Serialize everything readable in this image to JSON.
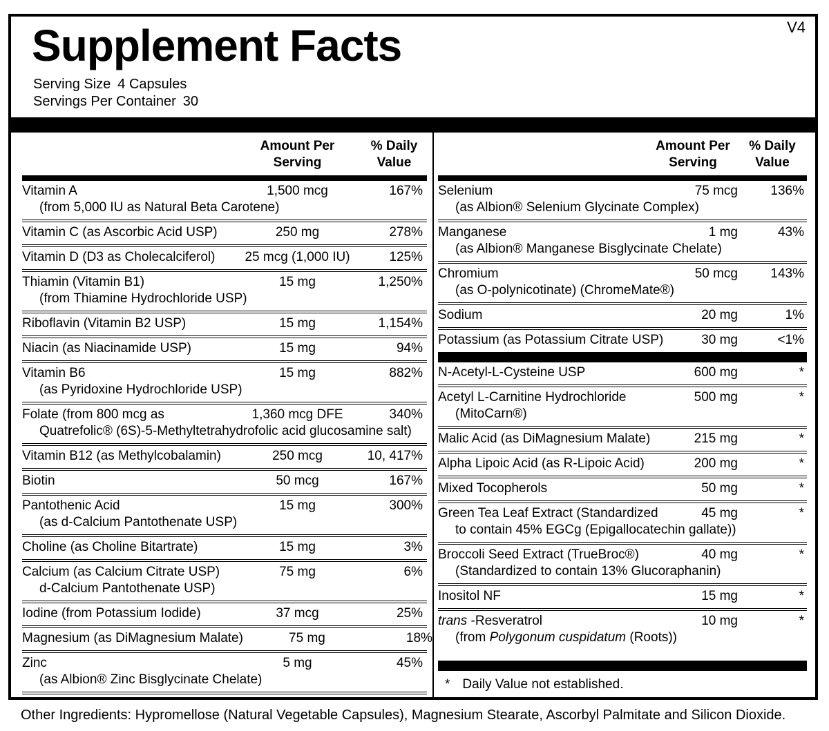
{
  "version_tag": "V4",
  "title": "Supplement Facts",
  "serving": {
    "size_label": "Serving Size",
    "size_value": "4 Capsules",
    "container_label": "Servings Per Container",
    "container_value": "30"
  },
  "column_header": {
    "amount_line1": "Amount Per",
    "amount_line2": "Serving",
    "dv_line1": "% Daily",
    "dv_line2": "Value"
  },
  "left_column": {
    "rows": [
      {
        "name": "Vitamin A",
        "amount": "1,500 mcg",
        "dv": "167%",
        "sub": "(from 5,000 IU as Natural Beta Carotene)"
      },
      {
        "name": "Vitamin C (as Ascorbic Acid USP)",
        "amount": "250 mg",
        "dv": "278%"
      },
      {
        "name": "Vitamin D (D3 as Cholecalciferol)",
        "amount": "25 mcg (1,000 IU)",
        "dv": "125%"
      },
      {
        "name": "Thiamin (Vitamin B1)",
        "amount": "15 mg",
        "dv": "1,250%",
        "sub": "(from Thiamine Hydrochloride USP)"
      },
      {
        "name": "Riboflavin (Vitamin B2 USP)",
        "amount": "15 mg",
        "dv": "1,154%"
      },
      {
        "name": "Niacin (as Niacinamide USP)",
        "amount": "15 mg",
        "dv": "94%"
      },
      {
        "name": "Vitamin B6",
        "amount": "15 mg",
        "dv": "882%",
        "sub": "(as Pyridoxine Hydrochloride USP)"
      },
      {
        "name": "Folate (from 800 mcg as",
        "amount": "1,360 mcg DFE",
        "dv": "340%",
        "sub": "Quatrefolic® (6S)-5-Methyltetrahydrofolic acid glucosamine salt)"
      },
      {
        "name": "Vitamin B12 (as Methylcobalamin)",
        "amount": "250 mcg",
        "dv": "10, 417%"
      },
      {
        "name": "Biotin",
        "amount": "50 mcg",
        "dv": "167%"
      },
      {
        "name": "Pantothenic Acid",
        "amount": "15 mg",
        "dv": "300%",
        "sub": "(as d-Calcium Pantothenate USP)"
      },
      {
        "name": "Choline (as Choline Bitartrate)",
        "amount": "15 mg",
        "dv": "3%"
      },
      {
        "name": "Calcium (as Calcium Citrate USP)",
        "amount": "75 mg",
        "dv": "6%",
        "sub": "d-Calcium Pantothenate USP)"
      },
      {
        "name": "Iodine (from Potassium Iodide)",
        "amount": "37 mcg",
        "dv": "25%"
      },
      {
        "name": "Magnesium (as DiMagnesium Malate)",
        "amount": "75 mg",
        "dv": "18%"
      },
      {
        "name": "Zinc",
        "amount": "5 mg",
        "dv": "45%",
        "sub": "(as Albion® Zinc Bisglycinate Chelate)"
      }
    ]
  },
  "right_column": {
    "section1": [
      {
        "name": "Selenium",
        "amount": "75 mcg",
        "dv": "136%",
        "sub": "(as Albion® Selenium Glycinate Complex)"
      },
      {
        "name": "Manganese",
        "amount": "1 mg",
        "dv": "43%",
        "sub": "(as Albion® Manganese Bisglycinate Chelate)"
      },
      {
        "name": "Chromium",
        "amount": "50 mcg",
        "dv": "143%",
        "sub": "(as O-polynicotinate) (ChromeMate®)"
      },
      {
        "name": "Sodium",
        "amount": "20 mg",
        "dv": "1%"
      },
      {
        "name": "Potassium (as Potassium Citrate USP)",
        "amount": "30 mg",
        "dv": "<1%"
      }
    ],
    "section2": [
      {
        "name": "N-Acetyl-L-Cysteine USP",
        "amount": "600 mg",
        "dv": "*"
      },
      {
        "name": "Acetyl L-Carnitine Hydrochloride",
        "amount": "500 mg",
        "dv": "*",
        "sub": "(MitoCarn®)"
      },
      {
        "name": "Malic Acid (as DiMagnesium Malate)",
        "amount": "215 mg",
        "dv": "*"
      },
      {
        "name": "Alpha Lipoic Acid (as R-Lipoic Acid)",
        "amount": "200 mg",
        "dv": "*"
      },
      {
        "name": "Mixed Tocopherols",
        "amount": "50 mg",
        "dv": "*"
      },
      {
        "name": "Green Tea Leaf Extract (Standardized",
        "amount": "45 mg",
        "dv": "*",
        "sub": "to contain 45% EGCg (Epigallocatechin gallate))"
      },
      {
        "name": "Broccoli Seed Extract (TrueBroc®)",
        "amount": "40 mg",
        "dv": "*",
        "sub": "(Standardized to contain 13% Glucoraphanin)"
      },
      {
        "name": "Inositol NF",
        "amount": "15 mg",
        "dv": "*"
      },
      {
        "name_parts": [
          {
            "text": "trans",
            "italic": true
          },
          {
            "text": " -Resveratrol",
            "italic": false
          }
        ],
        "amount": "10 mg",
        "dv": "*",
        "sub_parts": [
          {
            "text": "(from ",
            "italic": false
          },
          {
            "text": "Polygonum cuspidatum",
            "italic": true
          },
          {
            "text": " (Roots))",
            "italic": false
          }
        ]
      }
    ],
    "footnote_star": "*",
    "footnote_text": "Daily Value not established."
  },
  "other_ingredients": "Other Ingredients: Hypromellose (Natural Vegetable Capsules), Magnesium Stearate, Ascorbyl Palmitate and Silicon Dioxide.",
  "colors": {
    "ink": "#000000",
    "background": "#ffffff"
  }
}
